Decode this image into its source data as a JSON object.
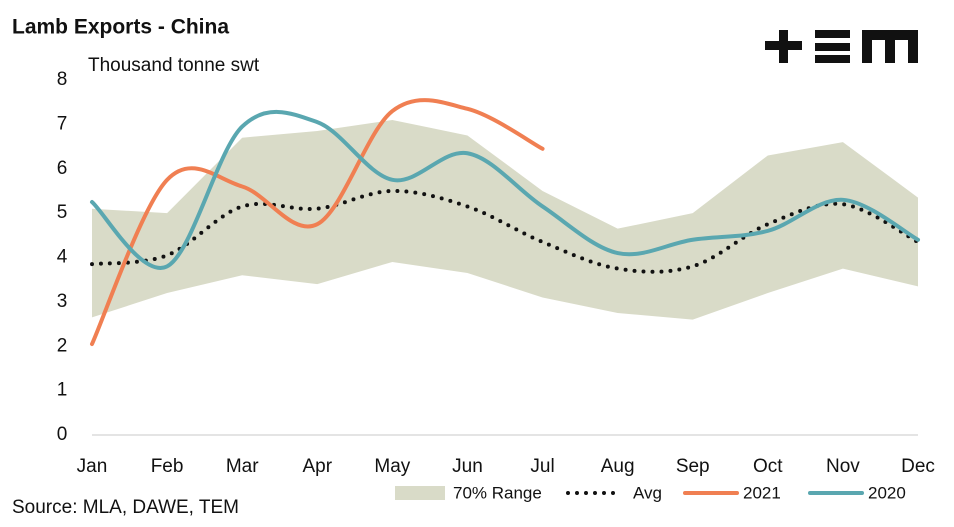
{
  "chart_data": {
    "type": "line",
    "title": "Lamb Exports - China",
    "y_label": "Thousand tonne swt",
    "source": "Source: MLA, DAWE, TEM",
    "categories": [
      "Jan",
      "Feb",
      "Mar",
      "Apr",
      "May",
      "Jun",
      "Jul",
      "Aug",
      "Sep",
      "Oct",
      "Nov",
      "Dec"
    ],
    "ylim": [
      0,
      8
    ],
    "yticks": [
      0,
      1,
      2,
      3,
      4,
      5,
      6,
      7,
      8
    ],
    "grid": false,
    "range": {
      "name": "70% Range",
      "color": "#d9dbc8",
      "upper": [
        5.1,
        5.0,
        6.7,
        6.85,
        7.1,
        6.75,
        5.5,
        4.65,
        5.0,
        6.3,
        6.6,
        5.35
      ],
      "lower": [
        2.65,
        3.2,
        3.6,
        3.4,
        3.9,
        3.65,
        3.1,
        2.75,
        2.6,
        3.2,
        3.75,
        3.35
      ]
    },
    "series": [
      {
        "name": "Avg",
        "color": "#111111",
        "dotted": true,
        "values": [
          3.85,
          4.05,
          5.15,
          5.1,
          5.5,
          5.15,
          4.35,
          3.75,
          3.8,
          4.75,
          5.2,
          4.35
        ]
      },
      {
        "name": "2021",
        "color": "#f07f52",
        "values": [
          2.05,
          5.75,
          5.6,
          4.75,
          7.3,
          7.35,
          6.45,
          null,
          null,
          null,
          null,
          null
        ]
      },
      {
        "name": "2020",
        "color": "#5aa7b0",
        "values": [
          5.25,
          3.8,
          6.95,
          7.05,
          5.75,
          6.35,
          5.15,
          4.1,
          4.4,
          4.6,
          5.3,
          4.4
        ]
      }
    ]
  }
}
